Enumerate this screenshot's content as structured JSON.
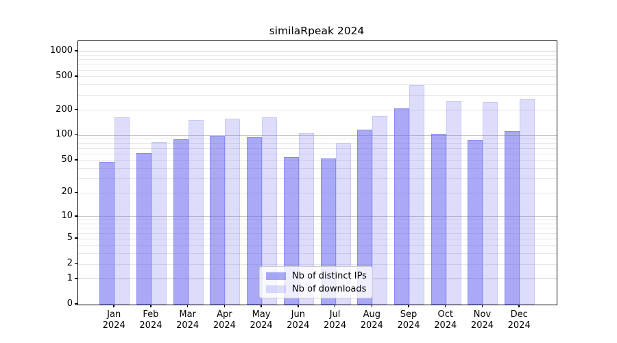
{
  "title": "similaRpeak 2024",
  "chart_data": {
    "type": "bar",
    "title": "similaRpeak 2024",
    "categories": [
      "Jan 2024",
      "Feb 2024",
      "Mar 2024",
      "Apr 2024",
      "May 2024",
      "Jun 2024",
      "Jul 2024",
      "Aug 2024",
      "Sep 2024",
      "Oct 2024",
      "Nov 2024",
      "Dec 2024"
    ],
    "series": [
      {
        "name": "Nb of distinct IPs",
        "values": [
          48,
          62,
          90,
          99,
          95,
          55,
          53,
          118,
          210,
          105,
          88,
          113
        ],
        "fill": "rgba(98,98,238,0.55)",
        "edge": "rgba(80,80,228,0.35)"
      },
      {
        "name": "Nb of downloads",
        "values": [
          165,
          84,
          153,
          157,
          165,
          107,
          81,
          172,
          398,
          256,
          248,
          272
        ],
        "fill": "rgba(98,98,238,0.22)",
        "edge": "rgba(98,98,238,0.18)"
      }
    ],
    "yscale": "log1p",
    "yticks": [
      0,
      1,
      2,
      5,
      10,
      20,
      50,
      100,
      200,
      500,
      1000
    ],
    "yminor": [
      3,
      4,
      6,
      7,
      8,
      9,
      30,
      40,
      60,
      70,
      80,
      90,
      300,
      400,
      600,
      700,
      800,
      900
    ],
    "ylim": [
      0,
      1400
    ],
    "grid": true,
    "legend_position": "lower center",
    "xlabel": "",
    "ylabel": ""
  },
  "colors": {
    "background": "#ffffff",
    "spine": "#000000",
    "grid_major": "#c9c9c9",
    "grid_minor": "#e7e7e7",
    "text": "#000000",
    "legend_border": "#cccccc",
    "legend_bg": "rgba(255,255,255,0.8)"
  }
}
